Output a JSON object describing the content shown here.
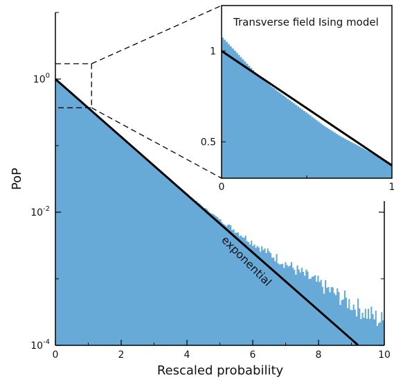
{
  "chart_data": [
    {
      "type": "histogram",
      "scale_y": "log",
      "xlabel": "Rescaled probability",
      "ylabel": "PoP",
      "xlim": [
        0,
        10
      ],
      "ylim_log10": [
        -4,
        1
      ],
      "x_ticks": [
        "0",
        "2",
        "4",
        "6",
        "8",
        "10"
      ],
      "y_ticks": [
        {
          "base": "10",
          "exp": "0"
        },
        {
          "base": "10",
          "exp": "-2"
        },
        {
          "base": "10",
          "exp": "-4"
        }
      ],
      "histogram": {
        "color": "#67a9d7",
        "points": [
          [
            0,
            1.0
          ],
          [
            0.5,
            0.6
          ],
          [
            1,
            0.37
          ],
          [
            1.5,
            0.22
          ],
          [
            2,
            0.135
          ],
          [
            2.5,
            0.082
          ],
          [
            3,
            0.05
          ],
          [
            3.5,
            0.031
          ],
          [
            4,
            0.019
          ],
          [
            4.5,
            0.012
          ],
          [
            5,
            0.0078
          ],
          [
            5.5,
            0.0052
          ],
          [
            6,
            0.0035
          ],
          [
            6.5,
            0.0024
          ],
          [
            7,
            0.0017
          ],
          [
            7.5,
            0.0012
          ],
          [
            8,
            0.00085
          ],
          [
            8.5,
            0.0006
          ],
          [
            9,
            0.00042
          ],
          [
            9.5,
            0.0003
          ],
          [
            10,
            0.00022
          ]
        ]
      },
      "exponential_line": {
        "label": "exponential",
        "color": "#000000",
        "x": [
          0,
          9.2
        ],
        "y": [
          1.0,
          0.000101
        ]
      }
    },
    {
      "type": "histogram",
      "title": "Transverse field Ising model",
      "xlim": [
        0,
        1
      ],
      "ylim": [
        0.3,
        1.25
      ],
      "x_ticks": [
        "0",
        "1"
      ],
      "y_ticks": [
        "1",
        "0.5"
      ],
      "histogram": {
        "color": "#67a9d7",
        "points": [
          [
            0,
            1.08
          ],
          [
            0.1,
            0.98
          ],
          [
            0.2,
            0.88
          ],
          [
            0.3,
            0.8
          ],
          [
            0.4,
            0.73
          ],
          [
            0.5,
            0.66
          ],
          [
            0.6,
            0.59
          ],
          [
            0.7,
            0.53
          ],
          [
            0.8,
            0.48
          ],
          [
            0.9,
            0.43
          ],
          [
            1,
            0.38
          ]
        ]
      },
      "exponential_line": {
        "color": "#000000",
        "x": [
          0,
          1
        ],
        "y": [
          1.0,
          0.37
        ]
      }
    }
  ],
  "exponential_label": "exponential"
}
